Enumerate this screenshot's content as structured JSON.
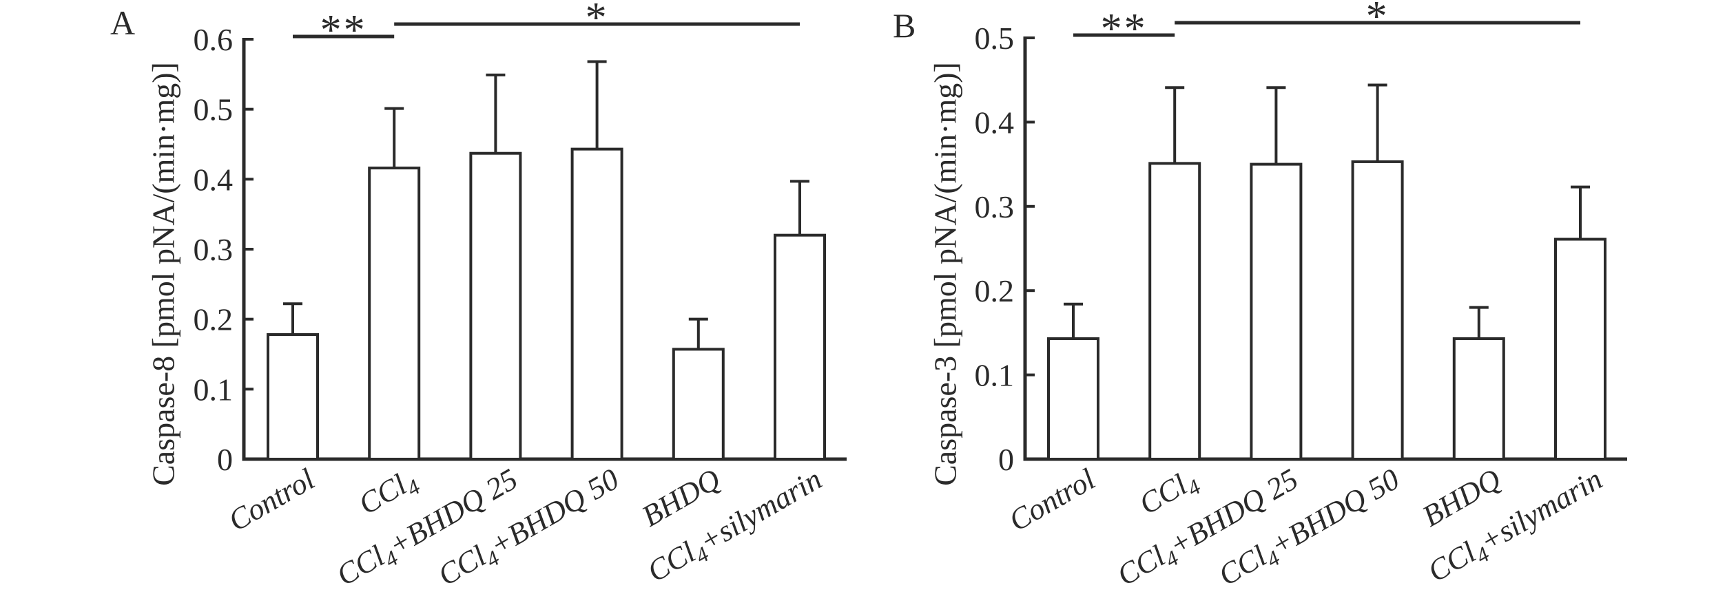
{
  "figure": {
    "background": "#ffffff",
    "ink_color": "#2a2a2a",
    "bar_fill": "#ffffff"
  },
  "chart_data": [
    {
      "type": "bar",
      "panel_label": "A",
      "ylabel": "Caspase-8 [pmol pNA/(min·mg)]",
      "xlabel": "",
      "categories": [
        "Control",
        "CCl_4_",
        "CCl_4_+BHDQ 25",
        "CCl_4_+BHDQ 50",
        "BHDQ",
        "CCl_4_+silymarin"
      ],
      "values": [
        0.178,
        0.416,
        0.437,
        0.443,
        0.157,
        0.32
      ],
      "errors_upper": [
        0.044,
        0.085,
        0.112,
        0.125,
        0.043,
        0.077
      ],
      "ylim": [
        0,
        0.6
      ],
      "ytick_labels": [
        "0",
        "0.1",
        "0.2",
        "0.3",
        "0.4",
        "0.5",
        "0.6"
      ],
      "grid": false,
      "legend": "none",
      "significance": [
        {
          "label": "**",
          "from": 0,
          "to": 1
        },
        {
          "label": "*",
          "from": 1,
          "to": 5
        }
      ]
    },
    {
      "type": "bar",
      "panel_label": "B",
      "ylabel": "Caspase-3 [pmol pNA/(min·mg)]",
      "xlabel": "",
      "categories": [
        "Control",
        "CCl_4_",
        "CCl_4_+BHDQ 25",
        "CCl_4_+BHDQ 50",
        "BHDQ",
        "CCl_4_+silymarin"
      ],
      "values": [
        0.143,
        0.351,
        0.35,
        0.353,
        0.143,
        0.261
      ],
      "errors_upper": [
        0.041,
        0.09,
        0.091,
        0.091,
        0.037,
        0.062
      ],
      "ylim": [
        0,
        0.5
      ],
      "ytick_labels": [
        "0",
        "0.1",
        "0.2",
        "0.3",
        "0.4",
        "0.5"
      ],
      "grid": false,
      "legend": "none",
      "significance": [
        {
          "label": "**",
          "from": 0,
          "to": 1
        },
        {
          "label": "*",
          "from": 1,
          "to": 5
        }
      ]
    }
  ]
}
